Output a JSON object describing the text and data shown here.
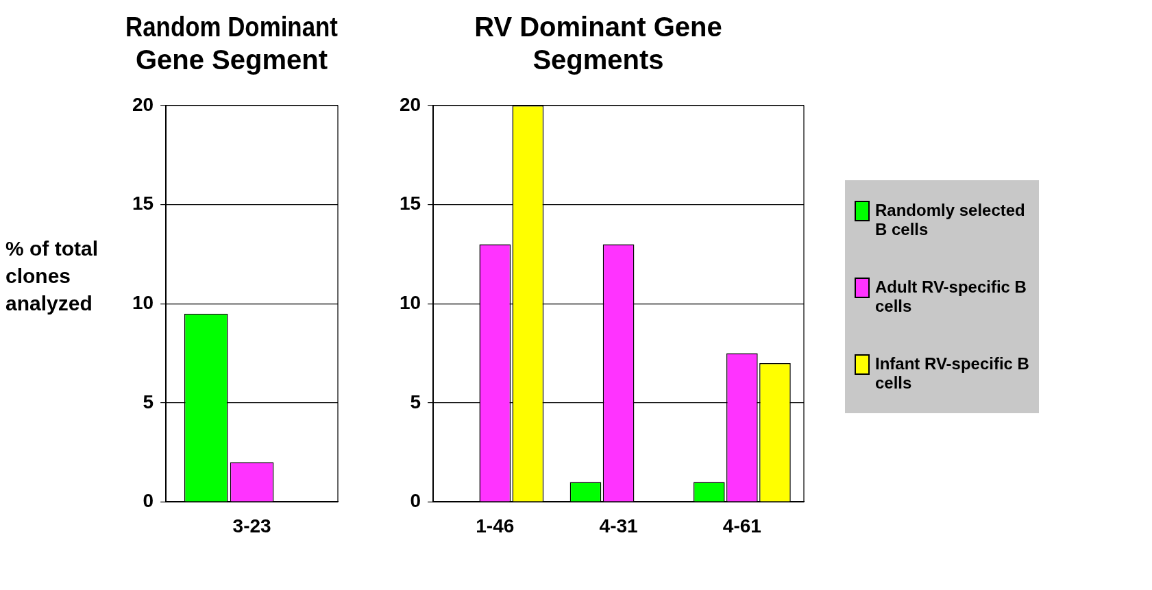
{
  "chart_data": [
    {
      "type": "bar",
      "title": "Random Dominant Gene Segment",
      "ylabel": "% of total clones analyzed",
      "categories": [
        "3-23"
      ],
      "series": [
        {
          "color": "#00ff00",
          "values": [
            9.5
          ]
        },
        {
          "color": "#ff33ff",
          "values": [
            2
          ]
        },
        {
          "color": "#ffff00",
          "values": [
            0
          ]
        }
      ],
      "ylim": [
        0,
        20
      ],
      "yticks": [
        0,
        5,
        10,
        15,
        20
      ],
      "grid": "y"
    },
    {
      "type": "bar",
      "title": "RV Dominant Gene Segments",
      "categories": [
        "1-46",
        "4-31",
        "4-61"
      ],
      "series": [
        {
          "name": "Randomly selected B cells",
          "color": "#00ff00",
          "values": [
            0,
            1,
            1
          ]
        },
        {
          "name": "Adult RV-specific B cells",
          "color": "#ff33ff",
          "values": [
            13,
            13,
            7.5
          ]
        },
        {
          "name": "Infant RV-specific B cells",
          "color": "#ffff00",
          "values": [
            20,
            0,
            7
          ]
        }
      ],
      "ylim": [
        0,
        20
      ],
      "yticks": [
        0,
        5,
        10,
        15,
        20
      ],
      "grid": "y",
      "legend": "right"
    }
  ]
}
